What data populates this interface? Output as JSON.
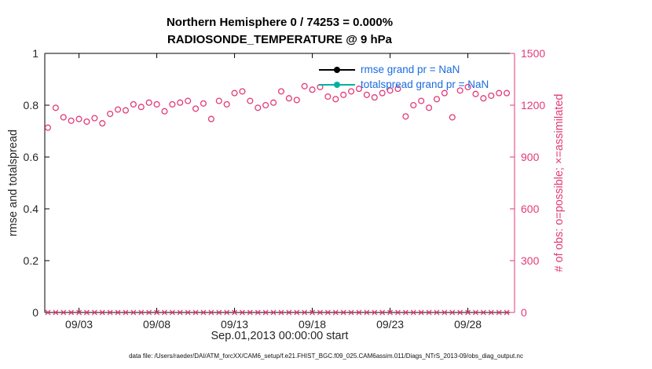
{
  "title": {
    "line1": "Northern Hemisphere 0 / 74253 = 0.000%",
    "line2": "RADIOSONDE_TEMPERATURE @ 9 hPa"
  },
  "axes": {
    "left_label": "rmse and totalspread",
    "right_label": "# of obs: o=possible; ×=assimilated",
    "x_label": "Sep.01,2013 00:00:00 start"
  },
  "legend_text_color": "#1b6be0",
  "legend": [
    {
      "label": "rmse grand pr = NaN",
      "color": "#000000"
    },
    {
      "label": "totalspread grand pr = NaN",
      "color": "#00b2a0"
    }
  ],
  "caption": "data file: /Users/raeder/DAI/ATM_forcXX/CAM6_setup/f.e21.FHIST_BGC.f09_025.CAM6assim.011/Diags_NTrS_2013-09/obs_diag_output.nc",
  "chart_data": {
    "type": "scatter",
    "title": "Northern Hemisphere 0 / 74253 = 0.000% — RADIOSONDE_TEMPERATURE @ 9 hPa",
    "xlabel": "Sep.01,2013 00:00:00 start",
    "ylabel_left": "rmse and totalspread",
    "ylabel_right": "# of obs: o=possible; ×=assimilated",
    "x_unit": "day of September 2013, two observations per day",
    "x_domain": [
      0.8,
      31
    ],
    "x_start": 1,
    "x_step": 0.5,
    "x_ticks": [
      {
        "v": 3,
        "label": "09/03"
      },
      {
        "v": 8,
        "label": "09/08"
      },
      {
        "v": 13,
        "label": "09/13"
      },
      {
        "v": 18,
        "label": "09/18"
      },
      {
        "v": 23,
        "label": "09/23"
      },
      {
        "v": 28,
        "label": "09/28"
      }
    ],
    "left_ylim": [
      0,
      1
    ],
    "left_yticks": [
      "0",
      "0.2",
      "0.4",
      "0.6",
      "0.8",
      "1"
    ],
    "right_ylim": [
      0,
      1500
    ],
    "right_yticks": [
      0,
      300,
      600,
      900,
      1200,
      1500
    ],
    "grid": false,
    "legend_position": "top-center-inside",
    "obs_color": "#e23a78",
    "rmse_grand_prior": "NaN",
    "totalspread_grand_prior": "NaN",
    "series": [
      {
        "name": "possible observations (o)",
        "marker": "o",
        "axis": "right",
        "values": [
          1070,
          1185,
          1130,
          1110,
          1120,
          1105,
          1125,
          1095,
          1150,
          1175,
          1170,
          1205,
          1190,
          1215,
          1205,
          1165,
          1205,
          1215,
          1225,
          1180,
          1210,
          1120,
          1225,
          1205,
          1270,
          1280,
          1225,
          1185,
          1200,
          1215,
          1280,
          1240,
          1230,
          1310,
          1290,
          1305,
          1250,
          1235,
          1260,
          1280,
          1295,
          1260,
          1245,
          1270,
          1285,
          1295,
          1135,
          1200,
          1225,
          1185,
          1235,
          1270,
          1130,
          1285,
          1305,
          1265,
          1240,
          1255,
          1270,
          1270
        ]
      },
      {
        "name": "assimilated observations (×)",
        "marker": "x",
        "axis": "right",
        "values": [
          0,
          0,
          0,
          0,
          0,
          0,
          0,
          0,
          0,
          0,
          0,
          0,
          0,
          0,
          0,
          0,
          0,
          0,
          0,
          0,
          0,
          0,
          0,
          0,
          0,
          0,
          0,
          0,
          0,
          0,
          0,
          0,
          0,
          0,
          0,
          0,
          0,
          0,
          0,
          0,
          0,
          0,
          0,
          0,
          0,
          0,
          0,
          0,
          0,
          0,
          0,
          0,
          0,
          0,
          0,
          0,
          0,
          0,
          0,
          0
        ]
      }
    ]
  }
}
